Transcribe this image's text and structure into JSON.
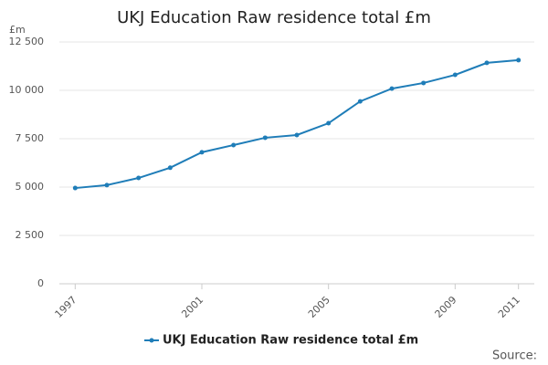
{
  "chart_data": {
    "type": "line",
    "title": "UKJ Education Raw residence total £m",
    "y_unit": "£m",
    "source": "Source:",
    "x": [
      1997,
      1998,
      1999,
      2000,
      2001,
      2002,
      2003,
      2004,
      2005,
      2006,
      2007,
      2008,
      2009,
      2010,
      2011
    ],
    "series": [
      {
        "name": "UKJ Education Raw residence total £m",
        "color": "#1f7db8",
        "values": [
          4950,
          5100,
          5470,
          6000,
          6800,
          7170,
          7550,
          7690,
          8300,
          9430,
          10090,
          10380,
          10800,
          11420,
          11560
        ]
      }
    ],
    "xlim": [
      1996.5,
      2011.5
    ],
    "xticks": [
      1997,
      2001,
      2005,
      2009,
      2011
    ],
    "ylim": [
      0,
      12500
    ],
    "yticks": [
      0,
      {
        "value": 2500,
        "label": "2 500"
      },
      {
        "value": 5000,
        "label": "5 000"
      },
      {
        "value": 7500,
        "label": "7 500"
      },
      {
        "value": 10000,
        "label": "10 000"
      },
      {
        "value": 12500,
        "label": "12 500"
      }
    ],
    "grid": true
  }
}
